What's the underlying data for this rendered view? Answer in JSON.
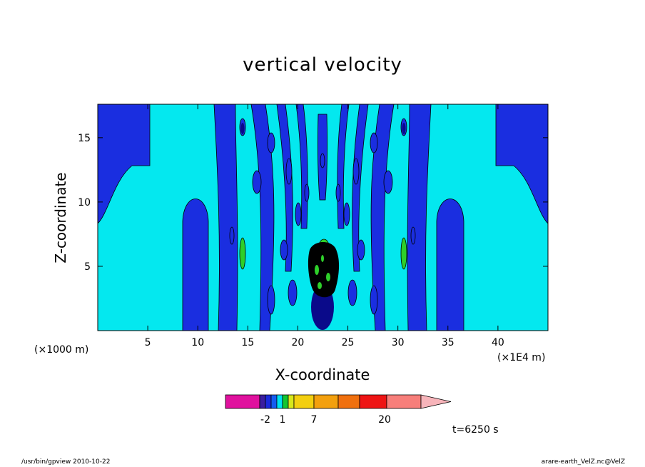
{
  "chart_data": {
    "type": "heatmap",
    "title": "vertical velocity",
    "xlabel": "X-coordinate",
    "ylabel": "Z-coordinate",
    "x_unit_label": "(×1000 m)",
    "x_scale_label": "(×1E4 m)",
    "xlim": [
      0,
      45
    ],
    "ylim": [
      0,
      17.6
    ],
    "x_ticks": [
      5,
      10,
      15,
      20,
      25,
      30,
      35,
      40
    ],
    "y_ticks": [
      5,
      10,
      15
    ],
    "grid": false,
    "colorbar": {
      "ticks": [
        "-2",
        "1",
        "7",
        "20"
      ],
      "colors": [
        "#e0119e",
        "#3b1ea0",
        "#1b2bdc",
        "#145cf0",
        "#00e2f2",
        "#14c630",
        "#d8e81a",
        "#f3cf10",
        "#f3a00e",
        "#f0700e",
        "#ee1414",
        "#f77e7a",
        "#f7b4ba"
      ]
    },
    "palette": {
      "background": "#04e8ef",
      "band": "#1a2ee0",
      "deep": "#0a0a8a",
      "green": "#2ecf2a",
      "core": "#000000"
    }
  },
  "annotations": {
    "time": "t=6250 s",
    "program": "/usr/bin/gpview   2010-10-22",
    "file": "arare-earth_VelZ.nc@VelZ"
  }
}
